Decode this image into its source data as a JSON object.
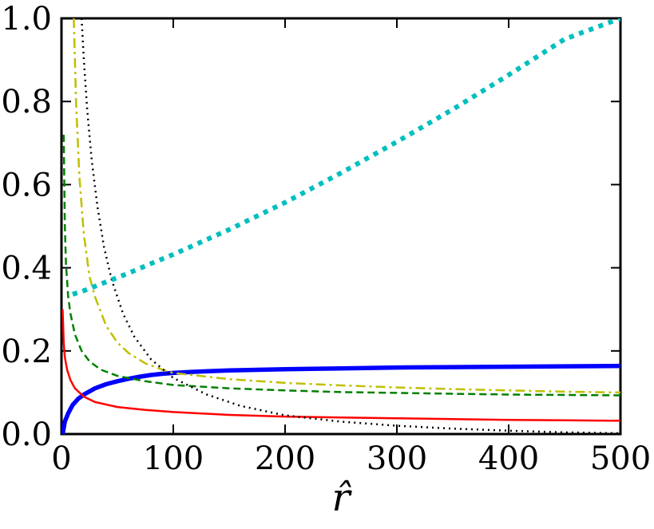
{
  "chart_data": {
    "type": "line",
    "xlabel": "r̂",
    "ylabel": "",
    "xlim": [
      0,
      500
    ],
    "ylim": [
      0,
      1.0
    ],
    "x_ticks": [
      "0",
      "100",
      "200",
      "300",
      "400",
      "500"
    ],
    "y_ticks": [
      "0.0",
      "0.2",
      "0.4",
      "0.6",
      "0.8",
      "1.0"
    ],
    "grid": false,
    "series": [
      {
        "color": "#0000ff",
        "style": "solid-thick",
        "x": [
          1,
          3,
          6,
          10,
          15,
          20,
          30,
          40,
          50,
          60,
          70,
          80,
          90,
          100,
          120,
          150,
          200,
          250,
          300,
          350,
          400,
          450,
          500
        ],
        "y": [
          0.0,
          0.03,
          0.05,
          0.07,
          0.085,
          0.095,
          0.11,
          0.12,
          0.127,
          0.133,
          0.138,
          0.142,
          0.145,
          0.147,
          0.15,
          0.153,
          0.156,
          0.158,
          0.16,
          0.161,
          0.162,
          0.163,
          0.164
        ]
      },
      {
        "color": "#ff0000",
        "style": "solid",
        "x": [
          1,
          2,
          3,
          5,
          8,
          12,
          20,
          30,
          50,
          75,
          100,
          150,
          200,
          250,
          300,
          350,
          400,
          450,
          500
        ],
        "y": [
          0.3,
          0.22,
          0.185,
          0.155,
          0.13,
          0.11,
          0.09,
          0.077,
          0.065,
          0.058,
          0.053,
          0.046,
          0.042,
          0.04,
          0.038,
          0.036,
          0.034,
          0.033,
          0.032
        ]
      },
      {
        "color": "#008000",
        "style": "dashed",
        "x": [
          2,
          3,
          4,
          6,
          8,
          12,
          18,
          25,
          35,
          50,
          75,
          100,
          150,
          200,
          250,
          300,
          350,
          400,
          450,
          500
        ],
        "y": [
          0.72,
          0.5,
          0.41,
          0.33,
          0.29,
          0.24,
          0.2,
          0.175,
          0.155,
          0.14,
          0.127,
          0.118,
          0.11,
          0.105,
          0.101,
          0.099,
          0.097,
          0.095,
          0.094,
          0.093
        ]
      },
      {
        "color": "#bfbf00",
        "style": "dashdot",
        "x": [
          11,
          13,
          16,
          20,
          25,
          30,
          40,
          50,
          60,
          75,
          90,
          100,
          150,
          200,
          250,
          300,
          350,
          400,
          450,
          500
        ],
        "y": [
          1.0,
          0.8,
          0.62,
          0.48,
          0.38,
          0.33,
          0.26,
          0.22,
          0.195,
          0.17,
          0.155,
          0.147,
          0.132,
          0.123,
          0.117,
          0.112,
          0.108,
          0.105,
          0.102,
          0.1
        ]
      },
      {
        "color": "#000000",
        "style": "dotted",
        "x": [
          18,
          20,
          23,
          27,
          32,
          38,
          45,
          55,
          65,
          80,
          100,
          130,
          160,
          200,
          250,
          300,
          350,
          400,
          450,
          500
        ],
        "y": [
          1.0,
          0.9,
          0.78,
          0.66,
          0.55,
          0.45,
          0.37,
          0.29,
          0.235,
          0.18,
          0.135,
          0.095,
          0.068,
          0.045,
          0.03,
          0.02,
          0.013,
          0.008,
          0.004,
          0.002
        ]
      },
      {
        "color": "#00bfbf",
        "style": "dotted-thick",
        "x": [
          10,
          20,
          40,
          60,
          80,
          100,
          150,
          200,
          250,
          300,
          350,
          400,
          450,
          500
        ],
        "y": [
          0.336,
          0.345,
          0.366,
          0.387,
          0.41,
          0.432,
          0.492,
          0.557,
          0.628,
          0.703,
          0.781,
          0.864,
          0.95,
          1.0
        ]
      }
    ]
  }
}
